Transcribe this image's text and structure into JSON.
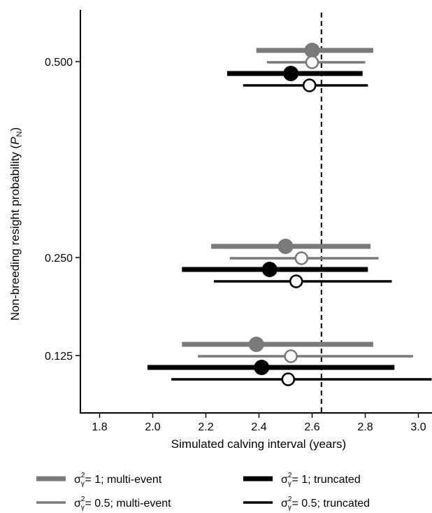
{
  "chart_data": {
    "type": "forest",
    "xlabel": "Simulated calving interval (years)",
    "ylabel_main": "Non-breeding resight probability (",
    "ylabel_var": "P",
    "ylabel_sub": "N",
    "ylabel_close": ")",
    "xlim": [
      1.75,
      3.05
    ],
    "x_ticks": [
      "1.8",
      "2.0",
      "2.2",
      "2.4",
      "2.6",
      "2.8",
      "3.0"
    ],
    "y_ticks": [
      "0.500",
      "0.250",
      "0.125"
    ],
    "y_axis_scale": "log",
    "reference_line": 2.635,
    "groups": [
      {
        "label": "0.500",
        "rows": [
          {
            "series": 0,
            "estimate": 2.6,
            "lower": 2.39,
            "upper": 2.83
          },
          {
            "series": 1,
            "estimate": 2.6,
            "lower": 2.43,
            "upper": 2.8
          },
          {
            "series": 2,
            "estimate": 2.52,
            "lower": 2.28,
            "upper": 2.79
          },
          {
            "series": 3,
            "estimate": 2.59,
            "lower": 2.34,
            "upper": 2.81
          }
        ]
      },
      {
        "label": "0.250",
        "rows": [
          {
            "series": 0,
            "estimate": 2.5,
            "lower": 2.22,
            "upper": 2.82
          },
          {
            "series": 1,
            "estimate": 2.56,
            "lower": 2.29,
            "upper": 2.85
          },
          {
            "series": 2,
            "estimate": 2.44,
            "lower": 2.11,
            "upper": 2.81
          },
          {
            "series": 3,
            "estimate": 2.54,
            "lower": 2.23,
            "upper": 2.9
          }
        ]
      },
      {
        "label": "0.125",
        "rows": [
          {
            "series": 0,
            "estimate": 2.39,
            "lower": 2.11,
            "upper": 2.83
          },
          {
            "series": 1,
            "estimate": 2.52,
            "lower": 2.17,
            "upper": 2.98
          },
          {
            "series": 2,
            "estimate": 2.41,
            "lower": 1.98,
            "upper": 2.91
          },
          {
            "series": 3,
            "estimate": 2.51,
            "lower": 2.07,
            "upper": 3.05
          }
        ]
      }
    ],
    "series": [
      {
        "sigma": "σ",
        "sub": "γ",
        "sup": "2",
        "rest": "= 1; multi-event",
        "color": "#7a7a7a",
        "filled": true,
        "weight": "thick"
      },
      {
        "sigma": "σ",
        "sub": "γ",
        "sup": "2",
        "rest": "= 0.5; multi-event",
        "color": "#7a7a7a",
        "filled": false,
        "weight": "thin"
      },
      {
        "sigma": "σ",
        "sub": "γ",
        "sup": "2",
        "rest": "= 1; truncated",
        "color": "#000000",
        "filled": true,
        "weight": "thick"
      },
      {
        "sigma": "σ",
        "sub": "γ",
        "sup": "2",
        "rest": "= 0.5; truncated",
        "color": "#000000",
        "filled": false,
        "weight": "thin"
      }
    ]
  }
}
